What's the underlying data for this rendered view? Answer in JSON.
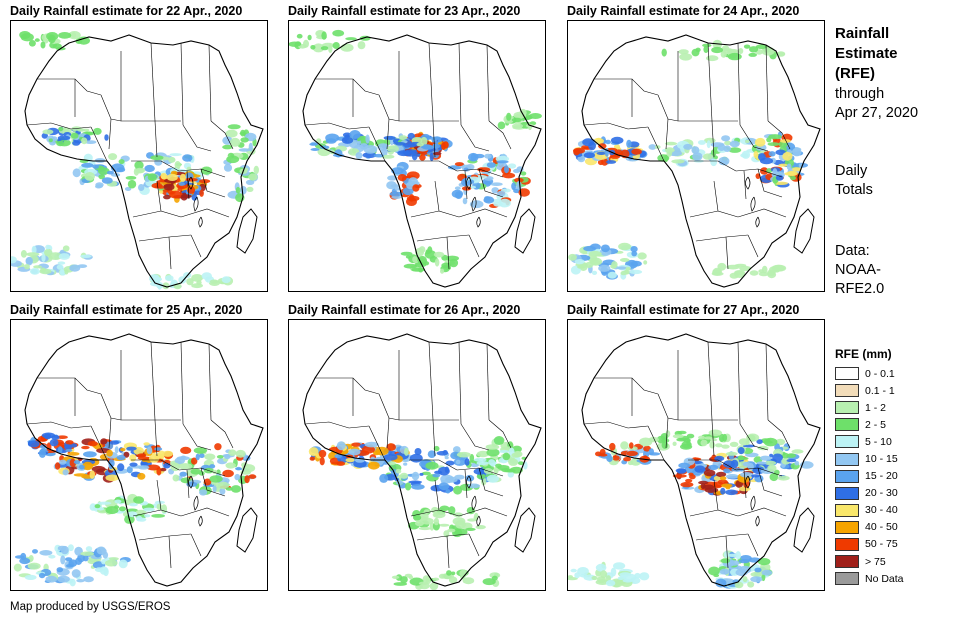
{
  "panels": [
    {
      "title": "Daily Rainfall estimate for 22 Apr., 2020",
      "rain_focus": "central-africa-east"
    },
    {
      "title": "Daily Rainfall estimate for 23 Apr., 2020",
      "rain_focus": "cameroon-gabon"
    },
    {
      "title": "Daily Rainfall estimate for 24 Apr., 2020",
      "rain_focus": "west-africa-east-africa"
    },
    {
      "title": "Daily Rainfall estimate for 25 Apr., 2020",
      "rain_focus": "west-central-africa"
    },
    {
      "title": "Daily Rainfall estimate for 26 Apr., 2020",
      "rain_focus": "sahel-central"
    },
    {
      "title": "Daily Rainfall estimate for 27 Apr., 2020",
      "rain_focus": "congo-east-africa"
    }
  ],
  "sidebar": {
    "title_lines": [
      "Rainfall",
      "Estimate",
      "(RFE)"
    ],
    "through_lines": [
      "through",
      "Apr 27, 2020"
    ],
    "totals_lines": [
      "Daily",
      "Totals"
    ],
    "data_lines": [
      "Data:",
      "NOAA-",
      "RFE2.0"
    ]
  },
  "legend": {
    "title": "RFE (mm)",
    "items": [
      {
        "label": "0 - 0.1",
        "color": "#ffffff"
      },
      {
        "label": "0.1 - 1",
        "color": "#f2dcb9"
      },
      {
        "label": "1 - 2",
        "color": "#b8f0b0"
      },
      {
        "label": "2 - 5",
        "color": "#6ee06a"
      },
      {
        "label": "5 - 10",
        "color": "#bdf3f5"
      },
      {
        "label": "10 - 15",
        "color": "#92c7f2"
      },
      {
        "label": "15 - 20",
        "color": "#5aa3ee"
      },
      {
        "label": "20 - 30",
        "color": "#2f6fe6"
      },
      {
        "label": "30 - 40",
        "color": "#f9e76b"
      },
      {
        "label": "40 - 50",
        "color": "#f5a400"
      },
      {
        "label": "50 - 75",
        "color": "#ef3a00"
      },
      {
        "label": "> 75",
        "color": "#a0201a"
      },
      {
        "label": "No Data",
        "color": "#9a9a9a"
      }
    ]
  },
  "footer": "Map produced by USGS/EROS"
}
